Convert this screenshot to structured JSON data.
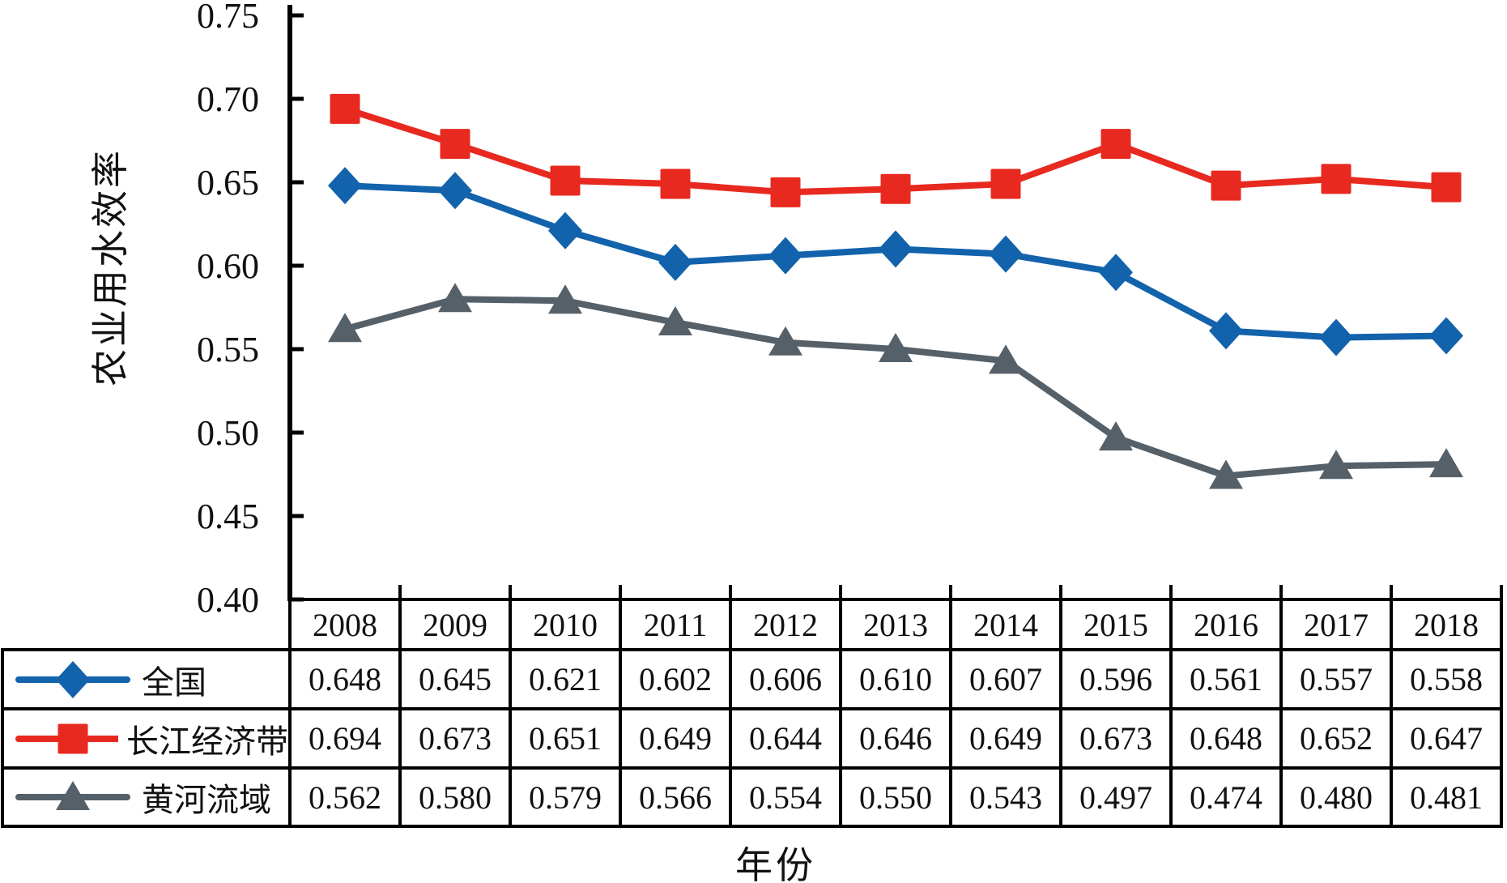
{
  "chart_data": {
    "type": "line",
    "title": "",
    "ylabel": "农业用水效率",
    "xlabel": "年份",
    "categories": [
      "2008",
      "2009",
      "2010",
      "2011",
      "2012",
      "2013",
      "2014",
      "2015",
      "2016",
      "2017",
      "2018"
    ],
    "ylim": [
      0.4,
      0.75
    ],
    "ytick_step": 0.05,
    "ytick_labels": [
      "0.40",
      "0.45",
      "0.50",
      "0.55",
      "0.60",
      "0.65",
      "0.70",
      "0.75"
    ],
    "grid": false,
    "legend_position": "table-left-column",
    "series": [
      {
        "key": "national",
        "name": "全国",
        "marker": "diamond",
        "color": "#1262AC",
        "values": [
          "0.648",
          "0.645",
          "0.621",
          "0.602",
          "0.606",
          "0.610",
          "0.607",
          "0.596",
          "0.561",
          "0.557",
          "0.558"
        ]
      },
      {
        "key": "yangtze-economic-belt",
        "name": "长江经济带",
        "marker": "square",
        "color": "#E8291F",
        "values": [
          "0.694",
          "0.673",
          "0.651",
          "0.649",
          "0.644",
          "0.646",
          "0.649",
          "0.673",
          "0.648",
          "0.652",
          "0.647"
        ]
      },
      {
        "key": "yellow-river-basin",
        "name": "黄河流域",
        "marker": "triangle",
        "color": "#556069",
        "values": [
          "0.562",
          "0.580",
          "0.579",
          "0.566",
          "0.554",
          "0.550",
          "0.543",
          "0.497",
          "0.474",
          "0.480",
          "0.481"
        ]
      }
    ]
  },
  "colors": {
    "axis": "#000000",
    "table_border": "#000000",
    "background": "#ffffff",
    "text": "#111111"
  }
}
